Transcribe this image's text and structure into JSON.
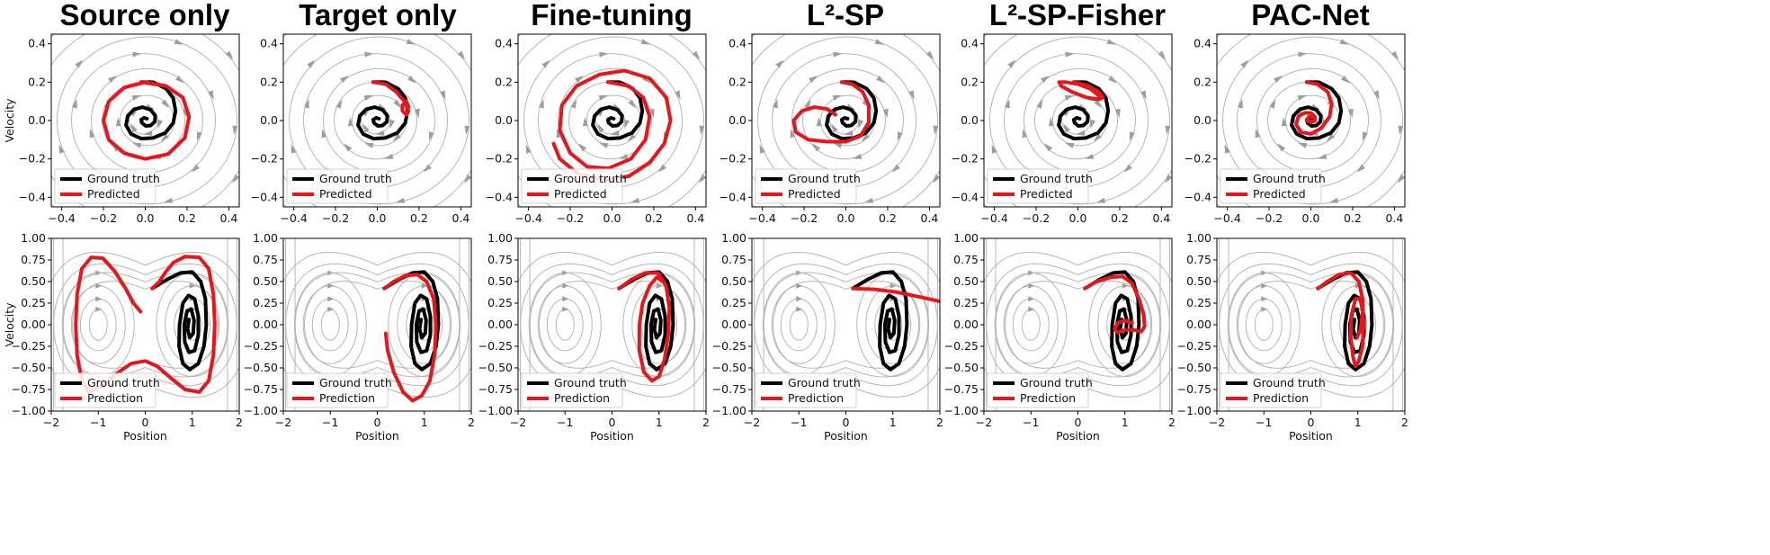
{
  "colors": {
    "ground_truth": "#000000",
    "predicted": "#e8161b",
    "stream": "#b5b5b5"
  },
  "chart_data": {
    "type": "line",
    "titles": [
      "Source only",
      "Target only",
      "Fine-tuning",
      "L²-SP",
      "L²-SP-Fisher",
      "PAC-Net"
    ],
    "rows": [
      {
        "system": "damped-oscillator",
        "xlabel": "",
        "ylabel": "Velocity",
        "xlim": [
          -0.45,
          0.45
        ],
        "ylim": [
          -0.45,
          0.45
        ],
        "xticks": [
          -0.4,
          -0.2,
          0.0,
          0.2,
          0.4
        ],
        "xtick_labels": [
          "−0.4",
          "−0.2",
          "0.0",
          "0.2",
          "0.4"
        ],
        "yticks": [
          -0.4,
          -0.2,
          0.0,
          0.2,
          0.4
        ],
        "ytick_labels": [
          "−0.4",
          "−0.2",
          "0.0",
          "0.2",
          "0.4"
        ],
        "legend": [
          "Ground truth",
          "Predicted"
        ],
        "legend_position": "lower-left",
        "ground_truth": [
          [
            -0.02,
            0.2
          ],
          [
            0.04,
            0.199
          ],
          [
            0.1,
            0.166
          ],
          [
            0.134,
            0.117
          ],
          [
            0.145,
            0.05
          ],
          [
            0.134,
            -0.012
          ],
          [
            0.096,
            -0.064
          ],
          [
            0.038,
            -0.091
          ],
          [
            -0.02,
            -0.094
          ],
          [
            -0.068,
            -0.07
          ],
          [
            -0.092,
            -0.024
          ],
          [
            -0.084,
            0.024
          ],
          [
            -0.054,
            0.058
          ],
          [
            -0.012,
            0.07
          ],
          [
            0.026,
            0.056
          ],
          [
            0.048,
            0.026
          ],
          [
            0.046,
            -0.006
          ],
          [
            0.026,
            -0.026
          ],
          [
            0.002,
            -0.028
          ],
          [
            -0.016,
            -0.012
          ],
          [
            -0.02,
            0.004
          ],
          [
            -0.006,
            0.014
          ],
          [
            0.008,
            0.01
          ]
        ],
        "predicted": [
          [
            [
              -0.02,
              0.2
            ],
            [
              0.1,
              0.18
            ],
            [
              0.18,
              0.12
            ],
            [
              0.21,
              0.02
            ],
            [
              0.19,
              -0.09
            ],
            [
              0.11,
              -0.175
            ],
            [
              0.0,
              -0.2
            ],
            [
              -0.1,
              -0.17
            ],
            [
              -0.175,
              -0.1
            ],
            [
              -0.2,
              0.0
            ],
            [
              -0.175,
              0.1
            ],
            [
              -0.1,
              0.172
            ],
            [
              0.0,
              0.2
            ],
            [
              0.1,
              0.18
            ]
          ],
          [
            [
              -0.02,
              0.2
            ],
            [
              0.04,
              0.19
            ],
            [
              0.09,
              0.15
            ],
            [
              0.13,
              0.1
            ],
            [
              0.15,
              0.05
            ],
            [
              0.14,
              0.03
            ],
            [
              0.12,
              0.05
            ],
            [
              0.12,
              0.08
            ],
            [
              0.14,
              0.1
            ],
            [
              0.15,
              0.07
            ]
          ],
          [
            [
              -0.02,
              0.2
            ],
            [
              0.08,
              0.18
            ],
            [
              0.15,
              0.12
            ],
            [
              0.18,
              0.02
            ],
            [
              0.16,
              -0.1
            ],
            [
              0.09,
              -0.2
            ],
            [
              -0.02,
              -0.25
            ],
            [
              -0.12,
              -0.24
            ],
            [
              -0.2,
              -0.17
            ],
            [
              -0.25,
              -0.05
            ],
            [
              -0.24,
              0.08
            ],
            [
              -0.17,
              0.18
            ],
            [
              -0.06,
              0.24
            ],
            [
              0.06,
              0.26
            ],
            [
              0.18,
              0.22
            ],
            [
              0.26,
              0.12
            ],
            [
              0.28,
              0.0
            ],
            [
              0.25,
              -0.12
            ],
            [
              0.18,
              -0.22
            ],
            [
              0.08,
              -0.29
            ],
            [
              -0.04,
              -0.31
            ],
            [
              -0.16,
              -0.28
            ],
            [
              -0.25,
              -0.2
            ],
            [
              -0.28,
              -0.12
            ]
          ],
          [
            [
              -0.02,
              0.2
            ],
            [
              0.03,
              0.19
            ],
            [
              0.08,
              0.15
            ],
            [
              0.11,
              0.08
            ],
            [
              0.11,
              -0.01
            ],
            [
              0.07,
              -0.08
            ],
            [
              0.0,
              -0.11
            ],
            [
              -0.09,
              -0.11
            ],
            [
              -0.18,
              -0.1
            ],
            [
              -0.24,
              -0.06
            ],
            [
              -0.25,
              0.0
            ],
            [
              -0.21,
              0.05
            ],
            [
              -0.15,
              0.07
            ],
            [
              -0.09,
              0.06
            ],
            [
              -0.05,
              0.03
            ]
          ],
          [
            [
              -0.02,
              0.2
            ],
            [
              0.05,
              0.18
            ],
            [
              0.1,
              0.15
            ],
            [
              0.12,
              0.12
            ],
            [
              0.1,
              0.11
            ],
            [
              0.04,
              0.12
            ],
            [
              -0.03,
              0.15
            ],
            [
              -0.08,
              0.18
            ],
            [
              -0.09,
              0.2
            ],
            [
              -0.06,
              0.2
            ],
            [
              0.0,
              0.19
            ],
            [
              0.06,
              0.165
            ],
            [
              0.1,
              0.13
            ],
            [
              0.1,
              0.11
            ],
            [
              0.06,
              0.115
            ]
          ],
          [
            [
              -0.02,
              0.2
            ],
            [
              0.03,
              0.19
            ],
            [
              0.08,
              0.15
            ],
            [
              0.1,
              0.09
            ],
            [
              0.09,
              0.02
            ],
            [
              0.05,
              -0.04
            ],
            [
              0.0,
              -0.07
            ],
            [
              -0.05,
              -0.06
            ],
            [
              -0.07,
              -0.02
            ],
            [
              -0.06,
              0.02
            ],
            [
              -0.03,
              0.04
            ],
            [
              0.0,
              0.04
            ],
            [
              0.02,
              0.02
            ],
            [
              0.02,
              0.0
            ],
            [
              0.0,
              -0.01
            ],
            [
              -0.02,
              0.0
            ],
            [
              -0.01,
              0.02
            ],
            [
              0.01,
              0.02
            ]
          ]
        ]
      },
      {
        "system": "duffing-oscillator",
        "xlabel": "Position",
        "ylabel": "Velocity",
        "xlim": [
          -2,
          2
        ],
        "ylim": [
          -1.0,
          1.0
        ],
        "xticks": [
          -2,
          -1,
          0,
          1,
          2
        ],
        "xtick_labels": [
          "−2",
          "−1",
          "0",
          "1",
          "2"
        ],
        "yticks": [
          -1.0,
          -0.75,
          -0.5,
          -0.25,
          0.0,
          0.25,
          0.5,
          0.75,
          1.0
        ],
        "ytick_labels": [
          "−1.00",
          "−0.75",
          "−0.50",
          "−0.25",
          "0.00",
          "0.25",
          "0.50",
          "0.75",
          "1.00"
        ],
        "legend": [
          "Ground truth",
          "Prediction"
        ],
        "legend_position": "lower-left",
        "ground_truth": [
          [
            0.15,
            0.42
          ],
          [
            0.45,
            0.52
          ],
          [
            0.75,
            0.6
          ],
          [
            1.0,
            0.61
          ],
          [
            1.18,
            0.5
          ],
          [
            1.28,
            0.3
          ],
          [
            1.3,
            0.0
          ],
          [
            1.25,
            -0.25
          ],
          [
            1.13,
            -0.45
          ],
          [
            0.95,
            -0.52
          ],
          [
            0.8,
            -0.45
          ],
          [
            0.72,
            -0.25
          ],
          [
            0.73,
            0.0
          ],
          [
            0.8,
            0.25
          ],
          [
            0.92,
            0.34
          ],
          [
            1.05,
            0.3
          ],
          [
            1.13,
            0.1
          ],
          [
            1.13,
            -0.12
          ],
          [
            1.05,
            -0.3
          ],
          [
            0.93,
            -0.32
          ],
          [
            0.84,
            -0.2
          ],
          [
            0.83,
            0.0
          ],
          [
            0.89,
            0.16
          ],
          [
            0.98,
            0.18
          ],
          [
            1.04,
            0.05
          ],
          [
            1.02,
            -0.1
          ],
          [
            0.95,
            -0.15
          ],
          [
            0.9,
            -0.05
          ],
          [
            0.93,
            0.06
          ]
        ],
        "predicted": [
          [
            [
              0.15,
              0.42
            ],
            [
              0.3,
              0.5
            ],
            [
              0.42,
              0.6
            ],
            [
              0.6,
              0.72
            ],
            [
              0.85,
              0.79
            ],
            [
              1.15,
              0.78
            ],
            [
              1.35,
              0.65
            ],
            [
              1.45,
              0.35
            ],
            [
              1.48,
              0.0
            ],
            [
              1.45,
              -0.35
            ],
            [
              1.35,
              -0.65
            ],
            [
              1.15,
              -0.78
            ],
            [
              0.85,
              -0.75
            ],
            [
              0.55,
              -0.62
            ],
            [
              0.25,
              -0.48
            ],
            [
              0.0,
              -0.42
            ],
            [
              -0.3,
              -0.45
            ],
            [
              -0.65,
              -0.58
            ],
            [
              -0.95,
              -0.72
            ],
            [
              -1.2,
              -0.78
            ],
            [
              -1.35,
              -0.65
            ],
            [
              -1.45,
              -0.35
            ],
            [
              -1.48,
              0.0
            ],
            [
              -1.45,
              0.35
            ],
            [
              -1.35,
              0.65
            ],
            [
              -1.15,
              0.78
            ],
            [
              -0.9,
              0.77
            ],
            [
              -0.65,
              0.62
            ],
            [
              -0.42,
              0.42
            ],
            [
              -0.25,
              0.25
            ],
            [
              -0.1,
              0.15
            ]
          ],
          [
            [
              0.15,
              0.42
            ],
            [
              0.35,
              0.5
            ],
            [
              0.6,
              0.57
            ],
            [
              0.85,
              0.58
            ],
            [
              1.05,
              0.5
            ],
            [
              1.2,
              0.3
            ],
            [
              1.25,
              0.0
            ],
            [
              1.22,
              -0.35
            ],
            [
              1.12,
              -0.65
            ],
            [
              0.95,
              -0.82
            ],
            [
              0.75,
              -0.88
            ],
            [
              0.55,
              -0.78
            ],
            [
              0.35,
              -0.55
            ],
            [
              0.22,
              -0.3
            ],
            [
              0.18,
              -0.1
            ]
          ],
          [
            [
              0.15,
              0.42
            ],
            [
              0.4,
              0.52
            ],
            [
              0.7,
              0.6
            ],
            [
              0.98,
              0.6
            ],
            [
              1.15,
              0.45
            ],
            [
              1.22,
              0.2
            ],
            [
              1.2,
              -0.1
            ],
            [
              1.12,
              -0.4
            ],
            [
              1.0,
              -0.6
            ],
            [
              0.85,
              -0.65
            ],
            [
              0.68,
              -0.55
            ],
            [
              0.58,
              -0.3
            ],
            [
              0.58,
              0.0
            ],
            [
              0.65,
              0.25
            ],
            [
              0.8,
              0.45
            ],
            [
              0.95,
              0.55
            ],
            [
              1.08,
              0.5
            ]
          ],
          [
            [
              0.15,
              0.42
            ],
            [
              0.6,
              0.41
            ],
            [
              1.05,
              0.38
            ],
            [
              1.5,
              0.33
            ],
            [
              2.0,
              0.27
            ]
          ],
          [
            [
              0.15,
              0.42
            ],
            [
              0.4,
              0.5
            ],
            [
              0.7,
              0.55
            ],
            [
              0.95,
              0.56
            ],
            [
              1.15,
              0.48
            ],
            [
              1.3,
              0.3
            ],
            [
              1.4,
              0.12
            ],
            [
              1.42,
              -0.02
            ],
            [
              1.35,
              -0.08
            ],
            [
              1.2,
              -0.06
            ],
            [
              1.0,
              -0.06
            ],
            [
              0.85,
              -0.09
            ],
            [
              0.78,
              -0.05
            ],
            [
              0.85,
              0.02
            ],
            [
              1.0,
              0.05
            ],
            [
              1.15,
              0.02
            ]
          ],
          [
            [
              0.15,
              0.42
            ],
            [
              0.35,
              0.5
            ],
            [
              0.6,
              0.58
            ],
            [
              0.85,
              0.6
            ],
            [
              1.02,
              0.5
            ],
            [
              1.1,
              0.3
            ],
            [
              1.12,
              0.0
            ],
            [
              1.1,
              -0.25
            ],
            [
              1.02,
              -0.42
            ],
            [
              0.95,
              -0.48
            ],
            [
              0.9,
              -0.38
            ],
            [
              0.85,
              -0.15
            ],
            [
              0.86,
              0.1
            ],
            [
              0.95,
              0.3
            ],
            [
              1.06,
              0.3
            ],
            [
              1.1,
              0.15
            ],
            [
              1.06,
              -0.05
            ],
            [
              0.98,
              -0.15
            ]
          ]
        ]
      }
    ]
  }
}
